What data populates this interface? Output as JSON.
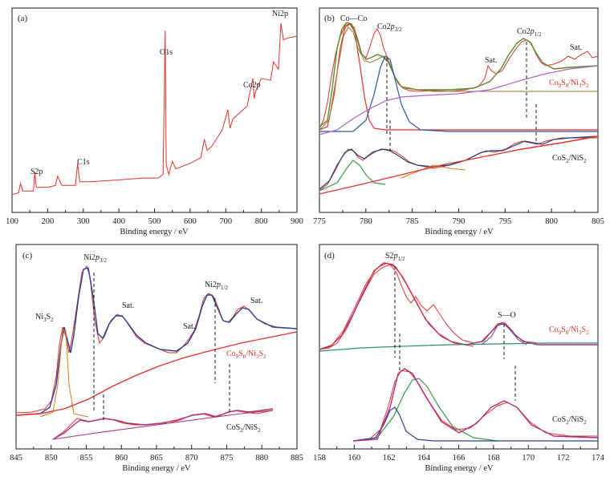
{
  "chart_data": [
    {
      "type": "line",
      "panel": "(a)",
      "xlabel": "Binding energy / eV",
      "xlim": [
        100,
        900
      ],
      "xticks": [
        100,
        200,
        300,
        400,
        500,
        600,
        700,
        800,
        900
      ],
      "y_scale": "arbitrary",
      "annotations": [
        {
          "label": "S2p",
          "at": 163
        },
        {
          "label": "C1s",
          "at": 284
        },
        {
          "label": "O1s",
          "at": 531
        },
        {
          "label": "Co2p",
          "at": 780
        },
        {
          "label": "Ni2p",
          "at": 855
        }
      ],
      "series": [
        {
          "color": "#e2322b",
          "x": [
            100,
            118,
            124,
            130,
            160,
            164,
            168,
            200,
            222,
            228,
            240,
            278,
            284,
            290,
            320,
            400,
            470,
            510,
            524,
            530,
            533,
            540,
            550,
            560,
            600,
            630,
            640,
            648,
            660,
            690,
            706,
            712,
            720,
            760,
            776,
            780,
            784,
            800,
            826,
            834,
            848,
            855,
            862,
            875,
            900
          ],
          "y": [
            0.04,
            0.05,
            0.1,
            0.06,
            0.06,
            0.16,
            0.08,
            0.08,
            0.09,
            0.14,
            0.09,
            0.09,
            0.21,
            0.11,
            0.11,
            0.12,
            0.13,
            0.13,
            0.15,
            0.93,
            0.2,
            0.15,
            0.22,
            0.18,
            0.21,
            0.24,
            0.34,
            0.28,
            0.3,
            0.39,
            0.5,
            0.4,
            0.45,
            0.52,
            0.67,
            0.56,
            0.6,
            0.67,
            0.66,
            0.76,
            0.72,
            0.97,
            0.88,
            0.89,
            0.9
          ]
        }
      ]
    },
    {
      "type": "line",
      "panel": "(b)",
      "xlabel": "Binding energy / eV",
      "xlim": [
        775,
        805
      ],
      "xticks": [
        775,
        780,
        785,
        790,
        795,
        800,
        805
      ],
      "y_scale": "arbitrary",
      "annotations": [
        {
          "label": "Co—Co",
          "at": 778.5
        },
        {
          "label": "Co2p3/2",
          "at": 782.2
        },
        {
          "label": "Sat.",
          "at": 793.5
        },
        {
          "label": "Co2p1/2",
          "at": 797.3
        },
        {
          "label": "Sat.",
          "at": 802.5
        }
      ],
      "sample_labels": [
        "Co9S8/Ni3S2",
        "CoS2/NiS2"
      ],
      "peak_markers": [
        782.2,
        797.3,
        782.5,
        798.3
      ],
      "series": [
        {
          "color": "#e2322b",
          "shape": "raw-upper"
        },
        {
          "color": "#e2322b",
          "shape": "peak-co-co"
        },
        {
          "color": "#2a58a8",
          "shape": "peak-co2p32"
        },
        {
          "color": "#b064c4",
          "shape": "background-upper"
        },
        {
          "color": "#5a8a2e",
          "shape": "fit-upper"
        },
        {
          "color": "#9a7a2e",
          "shape": "fit-upper-2"
        },
        {
          "color": "#e2322b",
          "shape": "raw-lower"
        },
        {
          "color": "#1f3b7a",
          "shape": "fit-lower"
        },
        {
          "color": "#3a9a4a",
          "shape": "peak-lower-1"
        },
        {
          "color": "#e07a1e",
          "shape": "peak-lower-2"
        },
        {
          "color": "#e2322b",
          "shape": "background-lower"
        }
      ]
    },
    {
      "type": "line",
      "panel": "(c)",
      "xlabel": "Binding energy / eV",
      "xlim": [
        845,
        885
      ],
      "xticks": [
        845,
        850,
        855,
        860,
        865,
        870,
        875,
        880,
        885
      ],
      "y_scale": "arbitrary",
      "annotations": [
        {
          "label": "Ni3S2",
          "at": 853
        },
        {
          "label": "Ni2p3/2",
          "at": 856.2
        },
        {
          "label": "Sat.",
          "at": 861.5
        },
        {
          "label": "Sat.",
          "at": 870
        },
        {
          "label": "Ni2p1/2",
          "at": 873.6
        },
        {
          "label": "Sat.",
          "at": 879.5
        }
      ],
      "sample_labels": [
        "Co9S8/Ni3S2",
        "CoS2/NiS2"
      ],
      "peak_markers": [
        856.2,
        873.6,
        857.6,
        875.8
      ],
      "series": [
        {
          "color": "#e2322b",
          "shape": "raw-upper"
        },
        {
          "color": "#2a3f95",
          "shape": "fit-upper"
        },
        {
          "color": "#e07a1e",
          "shape": "peak-ni3s2"
        },
        {
          "color": "#e2322b",
          "shape": "background-upper"
        },
        {
          "color": "#e2322b",
          "shape": "raw-lower"
        },
        {
          "color": "#b0307a",
          "shape": "fit-lower"
        }
      ]
    },
    {
      "type": "line",
      "panel": "(d)",
      "xlabel": "Binding energy / eV",
      "xlim": [
        158,
        174
      ],
      "xticks": [
        158,
        160,
        162,
        164,
        166,
        168,
        170,
        172,
        174
      ],
      "y_scale": "arbitrary",
      "annotations": [
        {
          "label": "S2p1/2",
          "at": 162.4
        },
        {
          "label": "S—O",
          "at": 168.6
        }
      ],
      "sample_labels": [
        "Co9S8/Ni3S2",
        "CoS2/NiS2"
      ],
      "peak_markers": [
        162.3,
        162.6,
        168.6,
        169.3
      ],
      "series": [
        {
          "color": "#e2322b",
          "shape": "raw-upper"
        },
        {
          "color": "#b0307a",
          "shape": "fit-upper"
        },
        {
          "color": "#2a8a7a",
          "shape": "background-upper"
        },
        {
          "color": "#4a4ab0",
          "shape": "peak-so"
        },
        {
          "color": "#e2322b",
          "shape": "raw-lower"
        },
        {
          "color": "#3a9a4a",
          "shape": "peak-lower-1"
        },
        {
          "color": "#2a3f95",
          "shape": "peak-lower-2"
        },
        {
          "color": "#b0307a",
          "shape": "peak-lower-3"
        }
      ]
    }
  ]
}
